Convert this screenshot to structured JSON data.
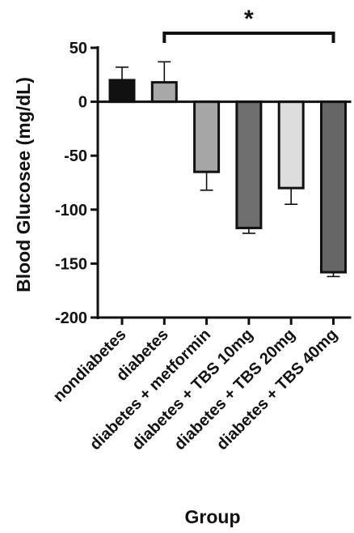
{
  "chart_data": {
    "type": "bar",
    "ylabel": "Blood Glucosee (mg/dL)",
    "xlabel": "Group",
    "categories": [
      "nondiabetes",
      "diabetes",
      "diabetes + metformin",
      "diabetes + TBS 10mg",
      "diabetes + TBS 20mg",
      "diabetes + TBS 40mg"
    ],
    "values": [
      20,
      18,
      -65,
      -117,
      -80,
      -158
    ],
    "error": [
      12,
      19,
      17,
      5,
      15,
      4
    ],
    "error_direction": [
      "up",
      "up",
      "down",
      "down",
      "down",
      "down"
    ],
    "bar_colors": [
      "#111111",
      "#a8a8a8",
      "#a6a6a6",
      "#6e6e6e",
      "#dcdcdc",
      "#666666"
    ],
    "ylim": [
      -200,
      50
    ],
    "yticks": [
      50,
      0,
      -50,
      -100,
      -150,
      -200
    ],
    "significance": {
      "from": 1,
      "to": 5,
      "label": "*"
    },
    "grid": false,
    "legend": "none"
  }
}
